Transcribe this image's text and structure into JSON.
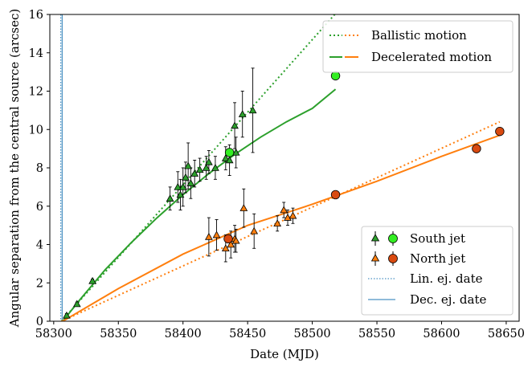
{
  "chart_data": {
    "type": "scatter",
    "xlabel": "Date (MJD)",
    "ylabel": "Angular separation from the central source (arcsec)",
    "xlim": [
      58297,
      58660
    ],
    "ylim": [
      0,
      16
    ],
    "x_ticks": [
      58300,
      58350,
      58400,
      58450,
      58500,
      58550,
      58600,
      58650
    ],
    "y_ticks": [
      0,
      2,
      4,
      6,
      8,
      10,
      12,
      14,
      16
    ],
    "grid": false,
    "colors": {
      "south": "#2ca02c",
      "south_light": "#33ee22",
      "north": "#ff7f0e",
      "north_dark": "#d94a10",
      "vline": "#1f77b4"
    },
    "vertical_lines": [
      {
        "label": "Lin. ej. date",
        "x": 58305.5,
        "style": "dotted"
      },
      {
        "label": "Dec. ej. date",
        "x": 58306.5,
        "style": "solid"
      }
    ],
    "models": [
      {
        "label": "Ballistic motion",
        "style": "dotted",
        "segments": [
          {
            "jet": "south",
            "x": [
              58306,
              58520
            ],
            "y": [
              0.0,
              16.2
            ]
          },
          {
            "jet": "north",
            "x": [
              58306,
              58645
            ],
            "y": [
              0.0,
              10.4
            ]
          }
        ]
      },
      {
        "label": "Decelerated motion",
        "style": "solid",
        "segments": [
          {
            "jet": "south",
            "x": [
              58307,
              58320,
              58340,
              58360,
              58380,
              58400,
              58420,
              58440,
              58460,
              58480,
              58500,
              58518
            ],
            "y": [
              0.0,
              1.1,
              2.7,
              4.1,
              5.4,
              6.6,
              7.7,
              8.7,
              9.6,
              10.4,
              11.1,
              12.1
            ]
          },
          {
            "jet": "north",
            "x": [
              58307,
              58350,
              58400,
              58450,
              58500,
              58550,
              58600,
              58645
            ],
            "y": [
              0.0,
              1.7,
              3.5,
              5.0,
              6.1,
              7.3,
              8.6,
              9.7
            ]
          }
        ]
      }
    ],
    "series": [
      {
        "name": "South jet",
        "jet": "south",
        "marker": "triangle",
        "points": [
          {
            "x": 58310,
            "y": 0.3,
            "err": 0.1
          },
          {
            "x": 58318,
            "y": 0.9,
            "err": 0.1
          },
          {
            "x": 58330,
            "y": 2.1,
            "err": 0.1
          },
          {
            "x": 58390,
            "y": 6.4,
            "err": 0.6
          },
          {
            "x": 58396,
            "y": 7.0,
            "err": 0.8
          },
          {
            "x": 58398,
            "y": 6.6,
            "err": 0.8
          },
          {
            "x": 58400,
            "y": 7.0,
            "err": 1.0
          },
          {
            "x": 58402,
            "y": 7.5,
            "err": 0.8
          },
          {
            "x": 58404,
            "y": 8.1,
            "err": 1.2
          },
          {
            "x": 58406,
            "y": 7.2,
            "err": 0.8
          },
          {
            "x": 58409,
            "y": 7.7,
            "err": 0.7
          },
          {
            "x": 58413,
            "y": 7.9,
            "err": 0.6
          },
          {
            "x": 58418,
            "y": 8.0,
            "err": 0.6
          },
          {
            "x": 58420,
            "y": 8.3,
            "err": 0.6
          },
          {
            "x": 58425,
            "y": 8.0,
            "err": 0.6
          },
          {
            "x": 58433,
            "y": 8.5,
            "err": 0.6
          },
          {
            "x": 58436,
            "y": 8.4,
            "err": 0.8
          },
          {
            "x": 58440,
            "y": 10.2,
            "err": 1.2
          },
          {
            "x": 58441,
            "y": 8.8,
            "err": 0.8
          },
          {
            "x": 58446,
            "y": 10.8,
            "err": 1.2
          },
          {
            "x": 58454,
            "y": 11.0,
            "err": 2.2
          }
        ]
      },
      {
        "name": "South jet",
        "jet": "south",
        "marker": "circle",
        "points": [
          {
            "x": 58436,
            "y": 8.8
          },
          {
            "x": 58518,
            "y": 12.8
          }
        ]
      },
      {
        "name": "North jet",
        "jet": "north",
        "marker": "triangle",
        "points": [
          {
            "x": 58420,
            "y": 4.4,
            "err": 1.0
          },
          {
            "x": 58426,
            "y": 4.5,
            "err": 0.8
          },
          {
            "x": 58433,
            "y": 3.8,
            "err": 0.7
          },
          {
            "x": 58437,
            "y": 4.0,
            "err": 0.7
          },
          {
            "x": 58440,
            "y": 4.3,
            "err": 0.7
          },
          {
            "x": 58441,
            "y": 4.2,
            "err": 0.6
          },
          {
            "x": 58447,
            "y": 5.9,
            "err": 1.0
          },
          {
            "x": 58455,
            "y": 4.7,
            "err": 0.9
          },
          {
            "x": 58473,
            "y": 5.1,
            "err": 0.4
          },
          {
            "x": 58478,
            "y": 5.8,
            "err": 0.4
          },
          {
            "x": 58481,
            "y": 5.4,
            "err": 0.4
          },
          {
            "x": 58485,
            "y": 5.5,
            "err": 0.4
          }
        ]
      },
      {
        "name": "North jet",
        "jet": "north",
        "marker": "circle",
        "points": [
          {
            "x": 58435,
            "y": 4.3
          },
          {
            "x": 58518,
            "y": 6.6
          },
          {
            "x": 58627,
            "y": 9.0
          },
          {
            "x": 58645,
            "y": 9.9
          }
        ]
      }
    ],
    "legends": [
      {
        "placement": "top-right",
        "entries": [
          "Ballistic motion",
          "Decelerated motion"
        ]
      },
      {
        "placement": "bottom-right",
        "entries": [
          "South jet",
          "North jet",
          "Lin. ej. date",
          "Dec. ej. date"
        ]
      }
    ]
  }
}
